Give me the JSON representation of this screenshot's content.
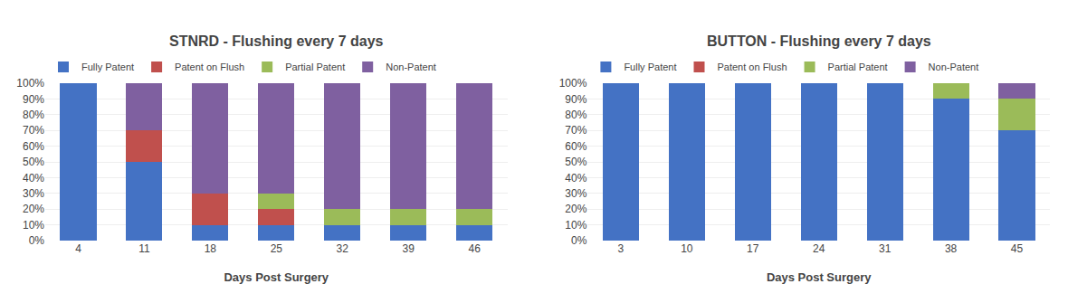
{
  "chart_data": [
    {
      "type": "bar",
      "stacked": true,
      "grid": true,
      "legend": "top",
      "title": "STNRD - Flushing every 7 days",
      "x_label": "Days Post Surgery",
      "categories": [
        "4",
        "11",
        "18",
        "25",
        "32",
        "39",
        "46"
      ],
      "series": [
        {
          "name": "Fully Patent",
          "color": "#4472c4",
          "values": [
            100,
            50,
            10,
            10,
            10,
            10,
            10
          ]
        },
        {
          "name": "Patent on Flush",
          "color": "#c0504d",
          "values": [
            0,
            20,
            20,
            10,
            0,
            0,
            0
          ]
        },
        {
          "name": "Partial Patent",
          "color": "#9bbb59",
          "values": [
            0,
            0,
            0,
            10,
            10,
            10,
            10
          ]
        },
        {
          "name": "Non-Patent",
          "color": "#7f60a0",
          "values": [
            0,
            30,
            70,
            70,
            80,
            80,
            80
          ]
        }
      ],
      "ylim": [
        0,
        100
      ],
      "yticks": [
        {
          "value": 0,
          "label": "0%"
        },
        {
          "value": 10,
          "label": "10%"
        },
        {
          "value": 20,
          "label": "20%"
        },
        {
          "value": 30,
          "label": "30%"
        },
        {
          "value": 40,
          "label": "40%"
        },
        {
          "value": 50,
          "label": "50%"
        },
        {
          "value": 60,
          "label": "60%"
        },
        {
          "value": 70,
          "label": "70%"
        },
        {
          "value": 80,
          "label": "80%"
        },
        {
          "value": 90,
          "label": "90%"
        },
        {
          "value": 100,
          "label": "100%"
        }
      ]
    },
    {
      "type": "bar",
      "stacked": true,
      "grid": true,
      "legend": "top",
      "title": "BUTTON - Flushing every 7 days",
      "x_label": "Days Post Surgery",
      "categories": [
        "3",
        "10",
        "17",
        "24",
        "31",
        "38",
        "45"
      ],
      "series": [
        {
          "name": "Fully Patent",
          "color": "#4472c4",
          "values": [
            100,
            100,
            100,
            100,
            100,
            90,
            70
          ]
        },
        {
          "name": "Patent on Flush",
          "color": "#c0504d",
          "values": [
            0,
            0,
            0,
            0,
            0,
            0,
            0
          ]
        },
        {
          "name": "Partial Patent",
          "color": "#9bbb59",
          "values": [
            0,
            0,
            0,
            0,
            0,
            10,
            20
          ]
        },
        {
          "name": "Non-Patent",
          "color": "#7f60a0",
          "values": [
            0,
            0,
            0,
            0,
            0,
            0,
            10
          ]
        }
      ],
      "ylim": [
        0,
        100
      ],
      "yticks": [
        {
          "value": 0,
          "label": "0%"
        },
        {
          "value": 10,
          "label": "10%"
        },
        {
          "value": 20,
          "label": "20%"
        },
        {
          "value": 30,
          "label": "30%"
        },
        {
          "value": 40,
          "label": "40%"
        },
        {
          "value": 50,
          "label": "50%"
        },
        {
          "value": 60,
          "label": "60%"
        },
        {
          "value": 70,
          "label": "70%"
        },
        {
          "value": 80,
          "label": "80%"
        },
        {
          "value": 90,
          "label": "90%"
        },
        {
          "value": 100,
          "label": "100%"
        }
      ]
    }
  ]
}
